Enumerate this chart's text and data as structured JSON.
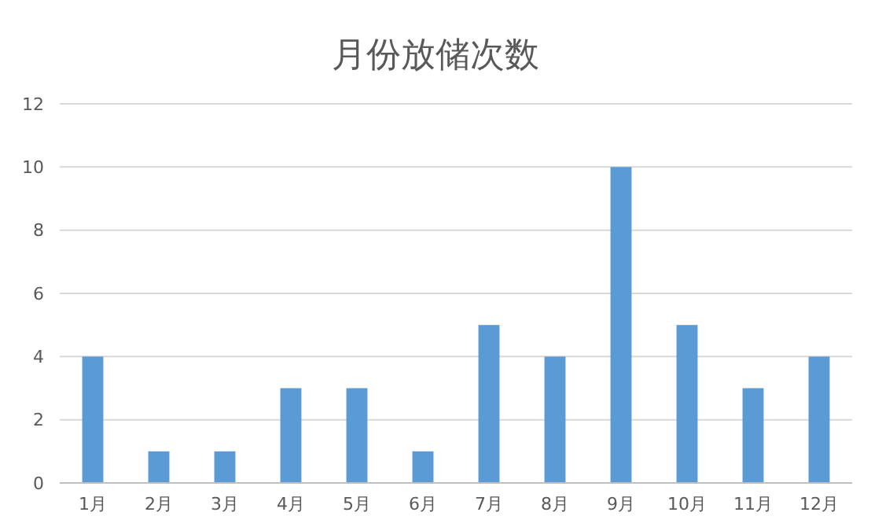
{
  "chart_data": {
    "type": "bar",
    "title": "月份放储次数",
    "categories": [
      "1月",
      "2月",
      "3月",
      "4月",
      "5月",
      "6月",
      "7月",
      "8月",
      "9月",
      "10月",
      "11月",
      "12月"
    ],
    "values": [
      4,
      1,
      1,
      3,
      3,
      1,
      5,
      4,
      10,
      5,
      3,
      4
    ],
    "color": "#5b9bd5",
    "ylim": [
      0,
      12
    ],
    "yticks": [
      0,
      2,
      4,
      6,
      8,
      10,
      12
    ],
    "grid": "y"
  }
}
